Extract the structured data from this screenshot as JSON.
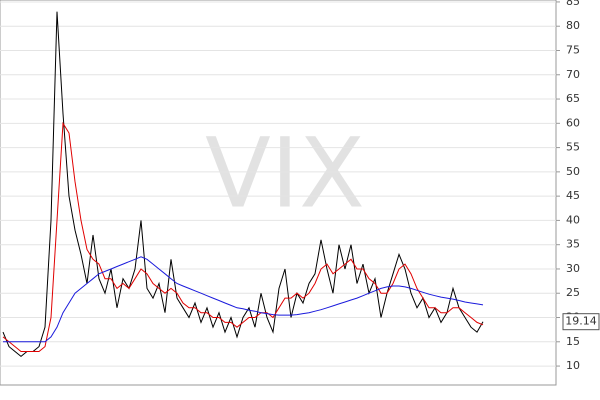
{
  "chart_data": {
    "type": "line",
    "watermark": "VIX",
    "ylim": [
      6.1,
      85.4
    ],
    "yticks": [
      10,
      15,
      20,
      25,
      30,
      35,
      40,
      45,
      50,
      55,
      60,
      65,
      70,
      75,
      80,
      85
    ],
    "grid": true,
    "series": [
      {
        "color": "#000000",
        "values": [
          17,
          14,
          13,
          12,
          13,
          13,
          14,
          18,
          40,
          83,
          62,
          45,
          38,
          33,
          27,
          37,
          28,
          25,
          30,
          22,
          28,
          26,
          30,
          40,
          26,
          24,
          27,
          21,
          32,
          24,
          22,
          20,
          23,
          19,
          22,
          18,
          21,
          17,
          20,
          16,
          20,
          22,
          18,
          25,
          20,
          17,
          26,
          30,
          20,
          25,
          23,
          27,
          29,
          36,
          30,
          25,
          35,
          30,
          35,
          27,
          31,
          25,
          28,
          20,
          25,
          29,
          33,
          30,
          25,
          22,
          24,
          20,
          22,
          19,
          21,
          26,
          22,
          20,
          18,
          17,
          19.14
        ]
      },
      {
        "color": "#e00000",
        "values": [
          16,
          15,
          14,
          13,
          13,
          13,
          13,
          14,
          20,
          40,
          60,
          58,
          48,
          40,
          34,
          32,
          31,
          28,
          28,
          26,
          27,
          26,
          28,
          30,
          29,
          27,
          26,
          25,
          26,
          25,
          23,
          22,
          22,
          21,
          21,
          20,
          20,
          19,
          19,
          18,
          19,
          20,
          20,
          21,
          21,
          20,
          22,
          24,
          24,
          25,
          24,
          25,
          27,
          30,
          31,
          29,
          30,
          31,
          32,
          30,
          30,
          28,
          27,
          25,
          25,
          27,
          30,
          31,
          29,
          26,
          24,
          22,
          22,
          21,
          21,
          22,
          22,
          21,
          20,
          19,
          18.5
        ]
      },
      {
        "color": "#1a1adc",
        "values": [
          15,
          15,
          15,
          15,
          15,
          15,
          15,
          15,
          16,
          18,
          21,
          23,
          25,
          26,
          27,
          28,
          29,
          29.5,
          30,
          30.5,
          31,
          31.5,
          32,
          32.5,
          32,
          31,
          30,
          29,
          28,
          27,
          26.5,
          26,
          25.5,
          25,
          24.5,
          24,
          23.5,
          23,
          22.5,
          22,
          21.8,
          21.5,
          21.3,
          21,
          20.8,
          20.6,
          20.5,
          20.5,
          20.5,
          20.6,
          20.8,
          21,
          21.3,
          21.6,
          22,
          22.4,
          22.8,
          23.2,
          23.6,
          24,
          24.5,
          25,
          25.5,
          26,
          26.3,
          26.5,
          26.5,
          26.3,
          26,
          25.6,
          25.2,
          24.8,
          24.5,
          24.2,
          24,
          23.8,
          23.5,
          23.2,
          23,
          22.8,
          22.6
        ]
      }
    ]
  }
}
